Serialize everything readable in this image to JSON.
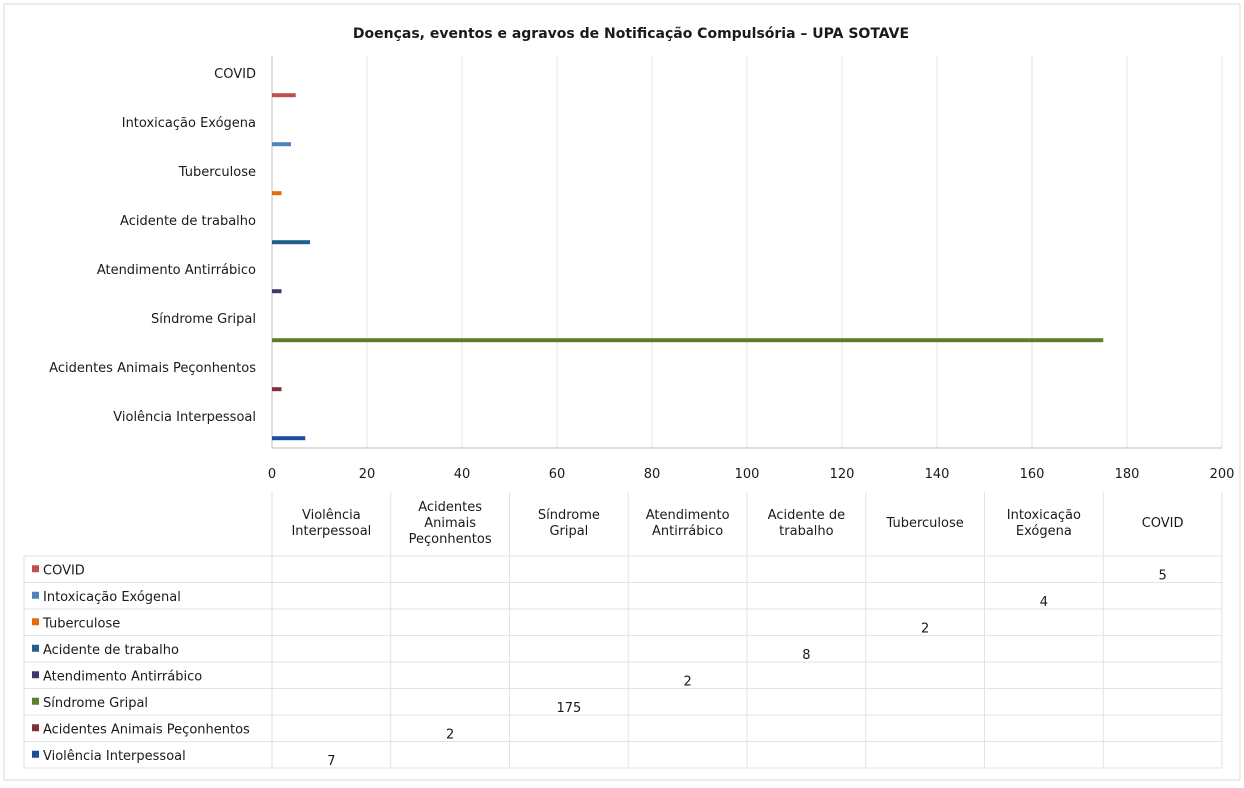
{
  "chart_data": {
    "type": "bar",
    "orientation": "horizontal",
    "title": "Doenças, eventos e agravos de Notificação Compulsória – UPA SOTAVE",
    "xlim": [
      0,
      200
    ],
    "x_ticks": [
      0,
      20,
      40,
      60,
      80,
      100,
      120,
      140,
      160,
      180,
      200
    ],
    "grid": true,
    "categories": [
      "Violência Interpessoal",
      "Acidentes Animais Peçonhentos",
      "Síndrome Gripal",
      "Atendimento Antirrábico",
      "Acidente de trabalho",
      "Tuberculose",
      "Intoxicação Exógena",
      "COVID"
    ],
    "series": [
      {
        "name": "COVID",
        "category": "COVID",
        "value": 5,
        "color": "#c0504d"
      },
      {
        "name": "Intoxicação Exógenal",
        "category": "Intoxicação Exógena",
        "value": 4,
        "color": "#4f81bd"
      },
      {
        "name": "Tuberculose",
        "category": "Tuberculose",
        "value": 2,
        "color": "#e46c0a"
      },
      {
        "name": "Acidente de trabalho",
        "category": "Acidente de trabalho",
        "value": 8,
        "color": "#1f5f8b"
      },
      {
        "name": "Atendimento Antirrábico",
        "category": "Atendimento Antirrábico",
        "value": 2,
        "color": "#3b3a6e"
      },
      {
        "name": "Síndrome Gripal",
        "category": "Síndrome Gripal",
        "value": 175,
        "color": "#5b7f2a"
      },
      {
        "name": "Acidentes Animais Peçonhentos",
        "category": "Acidentes Animais Peçonhentos",
        "value": 2,
        "color": "#7f2f3a"
      },
      {
        "name": "Violência Interpessoal",
        "category": "Violência Interpessoal",
        "value": 7,
        "color": "#1f4e99"
      }
    ],
    "data_table": {
      "columns": [
        "Violência Interpessoal",
        "Acidentes Animais Peçonhentos",
        "Síndrome Gripal",
        "Atendimento Antirrábico",
        "Acidente de trabalho",
        "Tuberculose",
        "Intoxicação Exógena",
        "COVID"
      ]
    }
  }
}
